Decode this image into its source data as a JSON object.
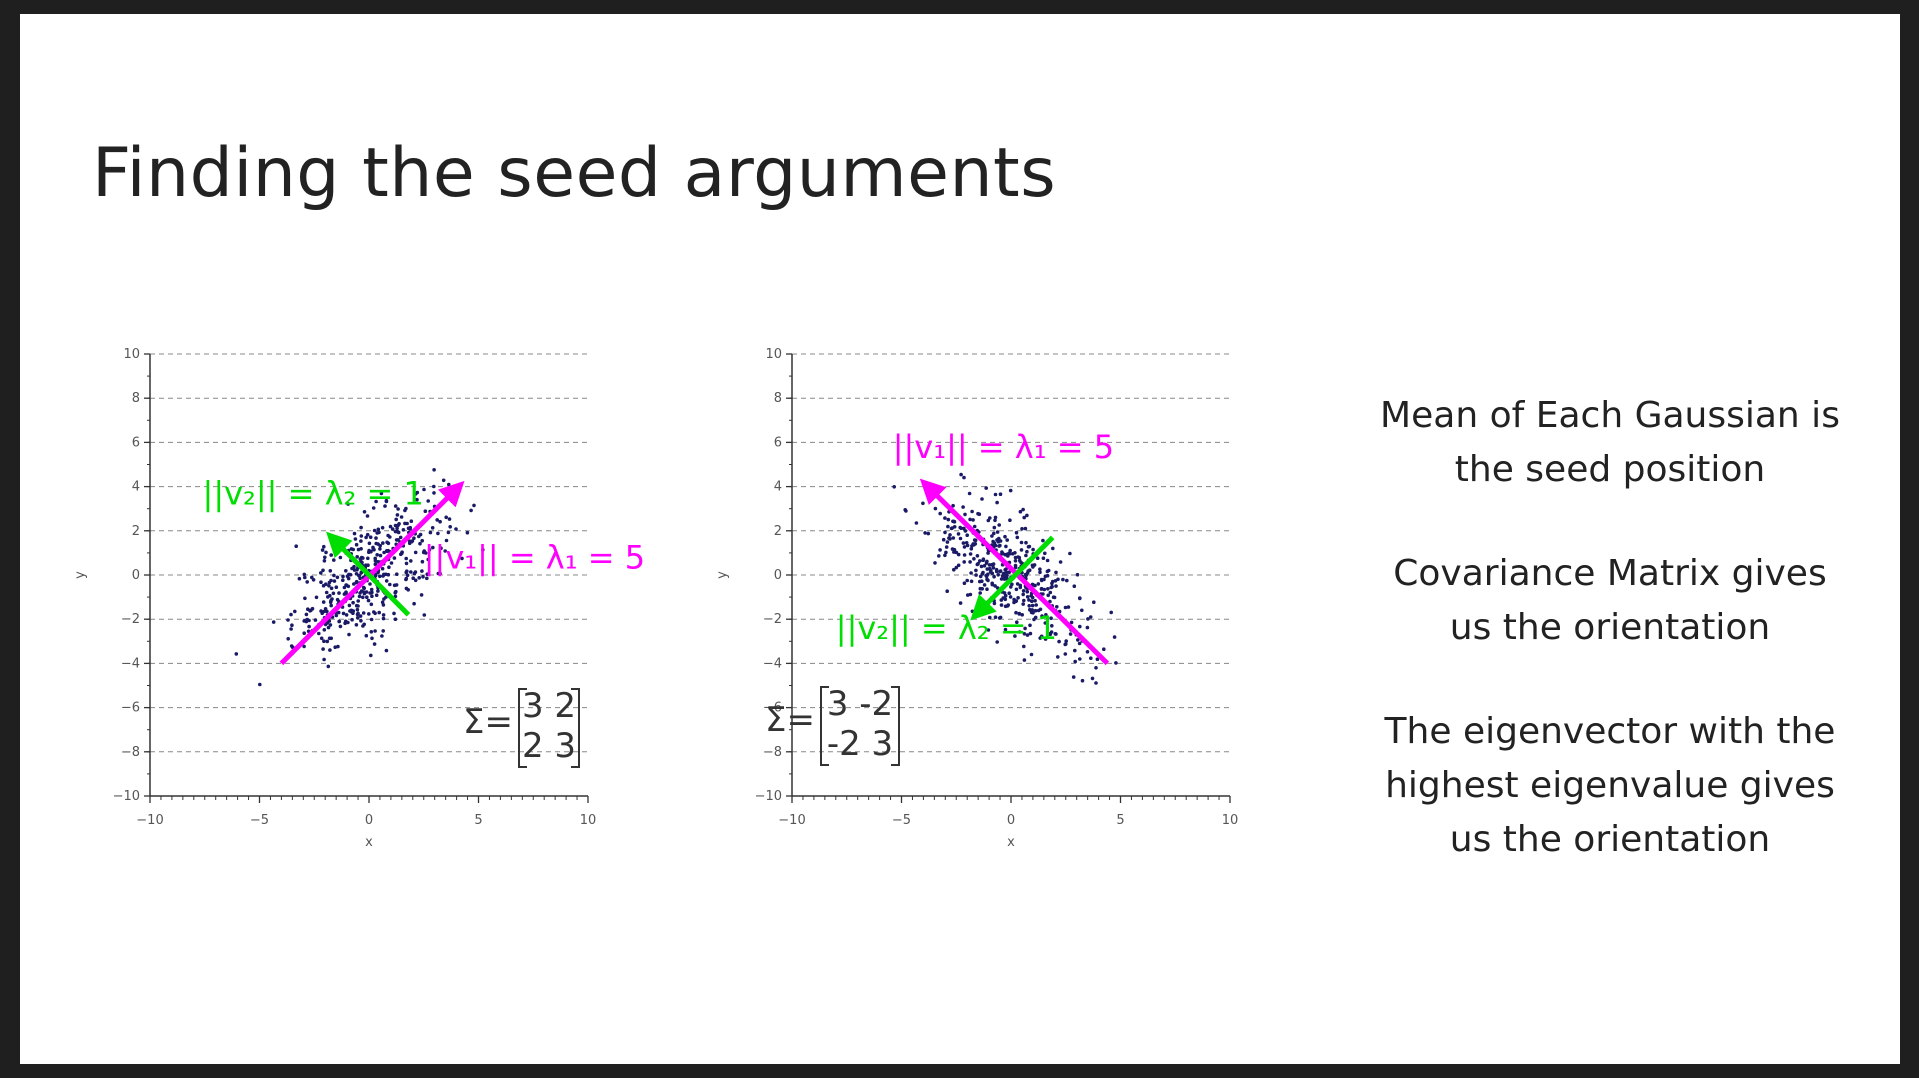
{
  "slide": {
    "title": "Finding the seed arguments",
    "notes": [
      [
        "Mean of Each Gaussian is",
        "the seed position"
      ],
      [
        "Covariance Matrix gives",
        "us the orientation"
      ],
      [
        "The eigenvector with the",
        "highest eigenvalue gives",
        "us the orientation"
      ]
    ]
  },
  "colors": {
    "points": "#1a1a66",
    "primary_eigenvector": "#ff00ff",
    "secondary_eigenvector": "#00dd00",
    "grid": "#888888"
  },
  "chart_data": [
    {
      "type": "scatter",
      "title": "",
      "xlabel": "x",
      "ylabel": "y",
      "xlim": [
        -10,
        10
      ],
      "ylim": [
        -10,
        10
      ],
      "xticks": [
        "−10",
        "−5",
        "0",
        "5",
        "10"
      ],
      "yticks": [
        "10",
        "8",
        "6",
        "4",
        "2",
        "0",
        "−2",
        "−4",
        "−6",
        "−8",
        "−10"
      ],
      "grid": "horizontal dashed",
      "mean": [
        0,
        0
      ],
      "covariance": [
        [
          3,
          2
        ],
        [
          2,
          3
        ]
      ],
      "covariance_label": "Σ=",
      "matrix_rows": [
        "3 2",
        "2 3"
      ],
      "point_count": 450,
      "vectors": [
        {
          "name": "v1",
          "from": [
            -4,
            -4
          ],
          "to": [
            4.2,
            4.1
          ],
          "label": "||v₁|| = λ₁ = 5",
          "label_at": [
            2.5,
            0.3
          ]
        },
        {
          "name": "v2",
          "from": [
            1.8,
            -1.8
          ],
          "to": [
            -1.8,
            1.8
          ],
          "label": "||v₂|| = λ₂ = 1",
          "label_at": [
            -7.6,
            3.2
          ]
        }
      ]
    },
    {
      "type": "scatter",
      "title": "",
      "xlabel": "x",
      "ylabel": "y",
      "xlim": [
        -10,
        10
      ],
      "ylim": [
        -10,
        10
      ],
      "xticks": [
        "−10",
        "−5",
        "0",
        "5",
        "10"
      ],
      "yticks": [
        "10",
        "8",
        "6",
        "4",
        "2",
        "0",
        "−2",
        "−4",
        "−6",
        "−8",
        "−10"
      ],
      "grid": "horizontal dashed",
      "mean": [
        0,
        0
      ],
      "covariance": [
        [
          3,
          -2
        ],
        [
          -2,
          3
        ]
      ],
      "covariance_label": "Σ=",
      "matrix_rows": [
        "3 -2",
        "-2 3"
      ],
      "point_count": 450,
      "vectors": [
        {
          "name": "v1",
          "from": [
            4.4,
            -4
          ],
          "to": [
            -4,
            4.2
          ],
          "label": "||v₁|| = λ₁ = 5",
          "label_at": [
            -5.4,
            5.3
          ]
        },
        {
          "name": "v2",
          "from": [
            1.9,
            1.7
          ],
          "to": [
            -1.7,
            -1.9
          ],
          "label": "||v₂|| = λ₂ = 1",
          "label_at": [
            -8,
            -2.9
          ]
        }
      ]
    }
  ]
}
